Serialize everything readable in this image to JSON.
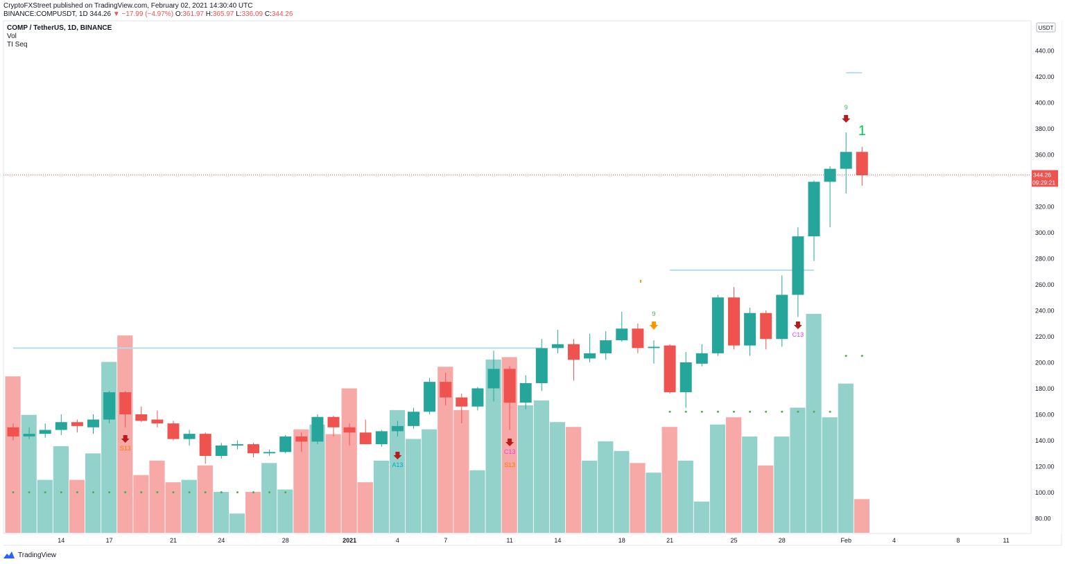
{
  "header": {
    "published": "CryptoFXStreet published on TradingView.com, February 02, 2021 14:30:40 UTC",
    "symbol_line": "BINANCE:COMPUSDT, 1D",
    "last": "344.26",
    "change": "−17.99 (−4.97%)",
    "o_label": "O:",
    "o": "361.97",
    "h_label": "H:",
    "h": "365.97",
    "l_label": "L:",
    "l": "336.09",
    "c_label": "C:",
    "c": "344.26"
  },
  "legend": {
    "title": "COMP / TetherUS, 1D, BINANCE",
    "vol": "Vol",
    "indicator": "TI Seq"
  },
  "footer": {
    "brand": "TradingView"
  },
  "colors": {
    "up": "#26a69a",
    "down": "#ef5350",
    "vol_up": "#93d2cb",
    "vol_down": "#f6a9a7",
    "level": "#b2dfea",
    "dot": "#4caf50"
  },
  "chart_data": {
    "type": "candlestick",
    "title": "COMP / TetherUS, 1D, BINANCE",
    "price_axis": {
      "unit": "USDT",
      "range": [
        80,
        460
      ],
      "ticks": [
        "440.00",
        "420.00",
        "400.00",
        "380.00",
        "360.00",
        "340.00",
        "320.00",
        "300.00",
        "280.00",
        "260.00",
        "240.00",
        "220.00",
        "200.00",
        "180.00",
        "160.00",
        "140.00",
        "120.00",
        "100.00",
        "80.00"
      ]
    },
    "current_price": "344.26",
    "countdown": "09:29:21",
    "x_ticks": [
      {
        "label": "14",
        "index": 3
      },
      {
        "label": "17",
        "index": 6
      },
      {
        "label": "21",
        "index": 10
      },
      {
        "label": "24",
        "index": 13
      },
      {
        "label": "28",
        "index": 17
      },
      {
        "label": "2021",
        "index": 21
      },
      {
        "label": "4",
        "index": 24
      },
      {
        "label": "7",
        "index": 27
      },
      {
        "label": "11",
        "index": 31
      },
      {
        "label": "14",
        "index": 34
      },
      {
        "label": "18",
        "index": 38
      },
      {
        "label": "21",
        "index": 41
      },
      {
        "label": "25",
        "index": 45
      },
      {
        "label": "28",
        "index": 48
      },
      {
        "label": "Feb",
        "index": 52
      },
      {
        "label": "4",
        "index": 55
      },
      {
        "label": "8",
        "index": 59
      },
      {
        "label": "11",
        "index": 62
      }
    ],
    "candles": [
      {
        "o": 150,
        "h": 153,
        "l": 140,
        "c": 143
      },
      {
        "o": 143,
        "h": 150,
        "l": 141,
        "c": 145
      },
      {
        "o": 145,
        "h": 153,
        "l": 142,
        "c": 148
      },
      {
        "o": 148,
        "h": 160,
        "l": 144,
        "c": 154
      },
      {
        "o": 154,
        "h": 156,
        "l": 146,
        "c": 151
      },
      {
        "o": 150,
        "h": 160,
        "l": 145,
        "c": 156
      },
      {
        "o": 156,
        "h": 178,
        "l": 153,
        "c": 177
      },
      {
        "o": 177,
        "h": 178,
        "l": 150,
        "c": 160
      },
      {
        "o": 160,
        "h": 166,
        "l": 154,
        "c": 155
      },
      {
        "o": 156,
        "h": 163,
        "l": 150,
        "c": 153
      },
      {
        "o": 153,
        "h": 155,
        "l": 140,
        "c": 141
      },
      {
        "o": 141,
        "h": 148,
        "l": 136,
        "c": 145
      },
      {
        "o": 145,
        "h": 146,
        "l": 122,
        "c": 128
      },
      {
        "o": 128,
        "h": 138,
        "l": 126,
        "c": 136
      },
      {
        "o": 136,
        "h": 140,
        "l": 133,
        "c": 137
      },
      {
        "o": 137,
        "h": 138,
        "l": 127,
        "c": 130
      },
      {
        "o": 130,
        "h": 133,
        "l": 128,
        "c": 131
      },
      {
        "o": 131,
        "h": 144,
        "l": 130,
        "c": 143
      },
      {
        "o": 143,
        "h": 146,
        "l": 131,
        "c": 139
      },
      {
        "o": 139,
        "h": 160,
        "l": 137,
        "c": 158
      },
      {
        "o": 158,
        "h": 159,
        "l": 143,
        "c": 150
      },
      {
        "o": 150,
        "h": 153,
        "l": 136,
        "c": 146
      },
      {
        "o": 146,
        "h": 156,
        "l": 137,
        "c": 137
      },
      {
        "o": 137,
        "h": 148,
        "l": 135,
        "c": 147
      },
      {
        "o": 147,
        "h": 155,
        "l": 143,
        "c": 151
      },
      {
        "o": 151,
        "h": 165,
        "l": 149,
        "c": 162
      },
      {
        "o": 162,
        "h": 188,
        "l": 160,
        "c": 185
      },
      {
        "o": 185,
        "h": 192,
        "l": 167,
        "c": 173
      },
      {
        "o": 173,
        "h": 176,
        "l": 153,
        "c": 166
      },
      {
        "o": 166,
        "h": 181,
        "l": 163,
        "c": 180
      },
      {
        "o": 180,
        "h": 209,
        "l": 170,
        "c": 195
      },
      {
        "o": 195,
        "h": 197,
        "l": 148,
        "c": 169
      },
      {
        "o": 169,
        "h": 190,
        "l": 164,
        "c": 184
      },
      {
        "o": 184,
        "h": 218,
        "l": 178,
        "c": 211
      },
      {
        "o": 211,
        "h": 225,
        "l": 207,
        "c": 214
      },
      {
        "o": 214,
        "h": 218,
        "l": 186,
        "c": 202
      },
      {
        "o": 203,
        "h": 222,
        "l": 200,
        "c": 207
      },
      {
        "o": 207,
        "h": 224,
        "l": 202,
        "c": 217
      },
      {
        "o": 217,
        "h": 239,
        "l": 216,
        "c": 226
      },
      {
        "o": 226,
        "h": 230,
        "l": 207,
        "c": 211
      },
      {
        "o": 211,
        "h": 217,
        "l": 199,
        "c": 212
      },
      {
        "o": 213,
        "h": 214,
        "l": 176,
        "c": 177
      },
      {
        "o": 177,
        "h": 208,
        "l": 165,
        "c": 200
      },
      {
        "o": 199,
        "h": 214,
        "l": 197,
        "c": 207
      },
      {
        "o": 207,
        "h": 252,
        "l": 205,
        "c": 250
      },
      {
        "o": 250,
        "h": 258,
        "l": 210,
        "c": 213
      },
      {
        "o": 213,
        "h": 242,
        "l": 205,
        "c": 238
      },
      {
        "o": 238,
        "h": 240,
        "l": 210,
        "c": 218
      },
      {
        "o": 218,
        "h": 267,
        "l": 212,
        "c": 252
      },
      {
        "o": 252,
        "h": 304,
        "l": 235,
        "c": 297
      },
      {
        "o": 297,
        "h": 340,
        "l": 278,
        "c": 339
      },
      {
        "o": 339,
        "h": 351,
        "l": 304,
        "c": 349
      },
      {
        "o": 349,
        "h": 377,
        "l": 330,
        "c": 362
      },
      {
        "o": 362,
        "h": 366,
        "l": 336,
        "c": 344
      }
    ],
    "volume_heights_px": [],
    "volume": [
      140,
      124,
      97,
      111,
      97,
      108,
      146,
      157,
      99,
      105,
      96,
      97,
      103,
      92,
      83,
      92,
      104,
      93,
      118,
      120,
      116,
      135,
      96,
      105,
      126,
      114,
      118,
      144,
      126,
      101,
      147,
      148,
      128,
      130,
      121,
      119,
      105,
      113,
      109,
      104,
      100,
      119,
      105,
      88,
      120,
      123,
      115,
      103,
      115,
      127,
      166,
      123,
      137,
      89
    ],
    "volume_axis_range": [
      75,
      170
    ],
    "levels": [
      {
        "price": 211,
        "from": 0,
        "to": 33
      },
      {
        "price": 271,
        "from": 41,
        "to": 50
      },
      {
        "price": 423,
        "from": 52,
        "to": 53
      }
    ],
    "support_dots": [
      {
        "price": 162,
        "from": 41,
        "to": 51
      },
      {
        "price": 205,
        "from": 52,
        "to": 53
      }
    ],
    "volume_dots": {
      "price": 100,
      "from": 0,
      "to": 17
    },
    "annotations": [
      {
        "index": 7,
        "type": "sell-arrow",
        "label": "S13",
        "color": "#f57c00"
      },
      {
        "index": 24,
        "type": "sell-arrow",
        "label": "A13",
        "color": "#00acc1"
      },
      {
        "index": 31,
        "type": "sell-arrow",
        "label": "C13",
        "color": "#e040fb"
      },
      {
        "index": 31,
        "type": "text",
        "label": "S13",
        "color": "#f57c00"
      },
      {
        "index": 40,
        "type": "orange-arrow",
        "label": "9",
        "color": "#4caf50"
      },
      {
        "index": 49,
        "type": "sell-arrow",
        "label": "C13",
        "color": "#e040fb"
      },
      {
        "index": 52,
        "type": "sell-arrow",
        "label": "9",
        "color": "#4caf50"
      },
      {
        "index": 53,
        "type": "big-text",
        "label": "1",
        "color": "#00c853"
      }
    ]
  }
}
